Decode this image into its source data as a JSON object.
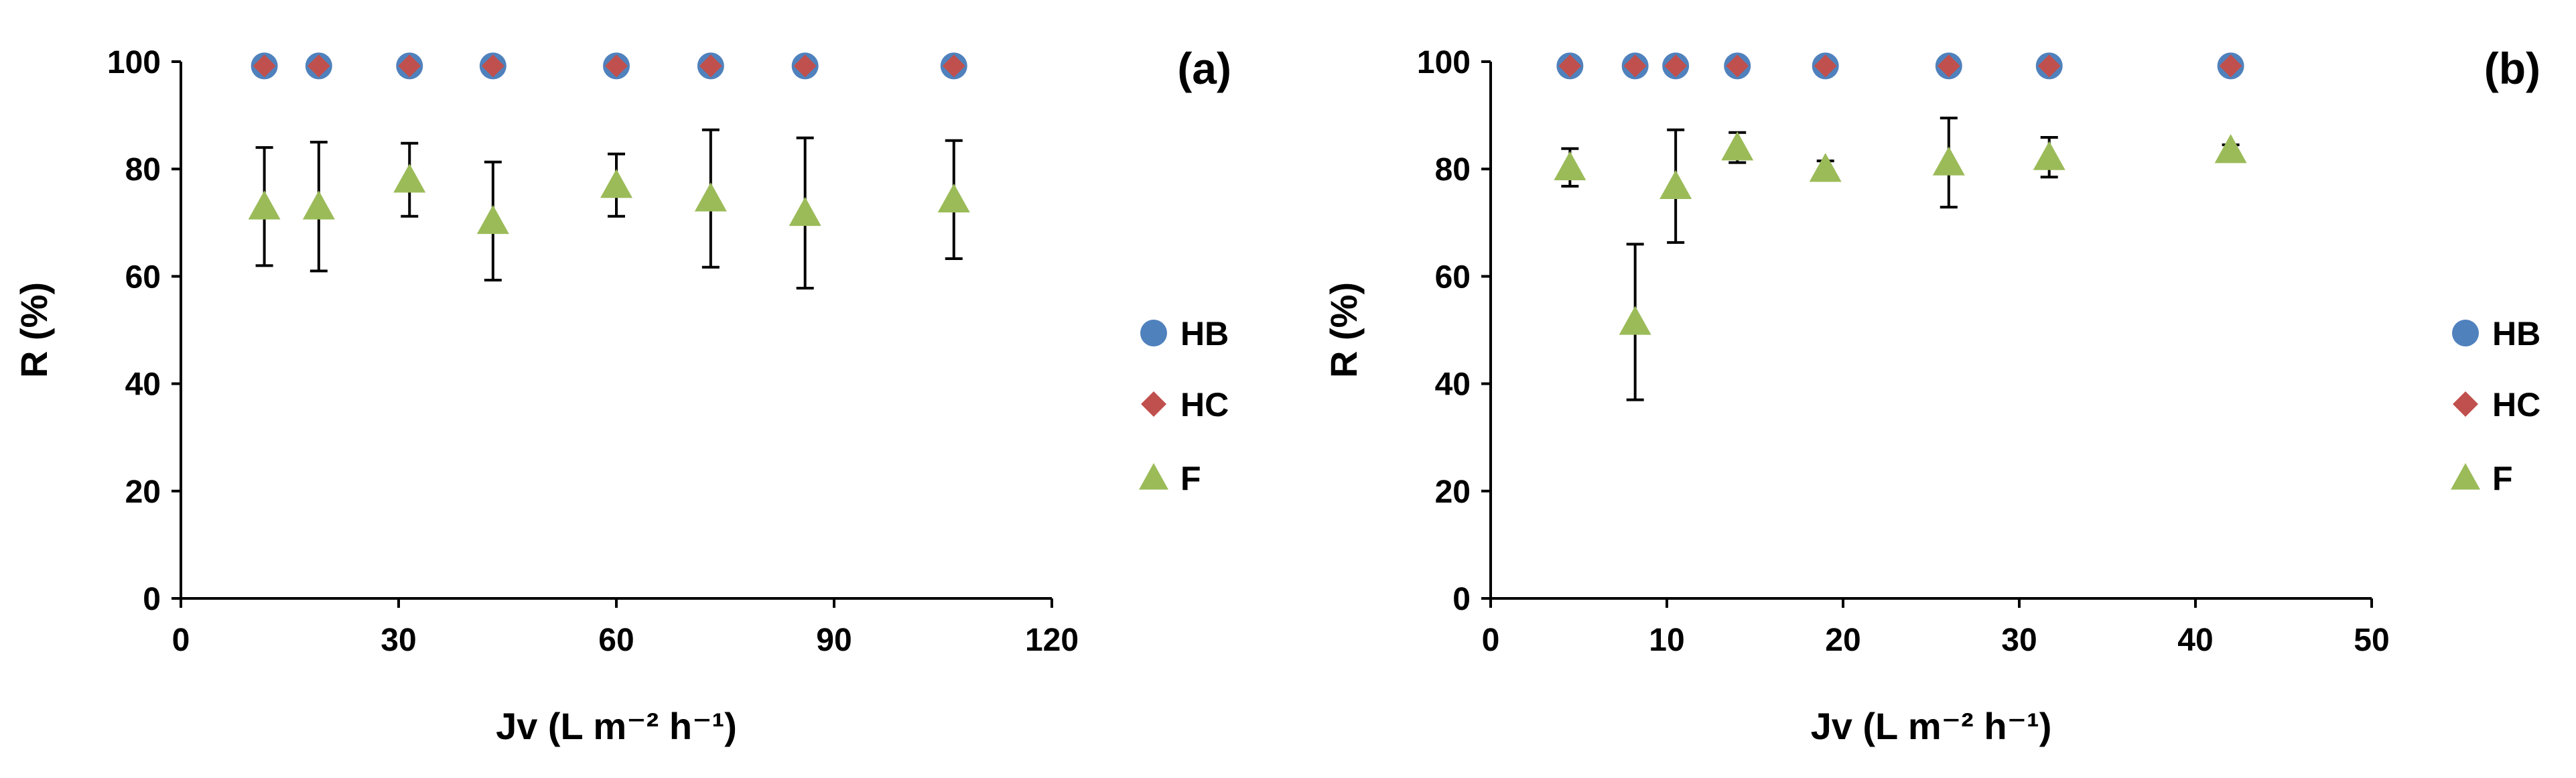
{
  "colors": {
    "HB": "#4F81BD",
    "HC": "#C0504D",
    "F": "#9BBB59",
    "axis": "#000000",
    "error_bar": "#000000"
  },
  "chart_data": [
    {
      "type": "scatter",
      "panel_label": "(a)",
      "title": "",
      "xlabel": "Jv (L m⁻² h⁻¹)",
      "ylabel": "R (%)",
      "xlim": [
        0,
        120
      ],
      "ylim": [
        0,
        100
      ],
      "xticks": [
        0,
        30,
        60,
        90,
        120
      ],
      "yticks": [
        0,
        20,
        40,
        60,
        80,
        100
      ],
      "grid": false,
      "legend_position": "right",
      "series": [
        {
          "name": "HB",
          "marker": "circle",
          "x": [
            11.5,
            19,
            31.5,
            43,
            60,
            73,
            86,
            106.5
          ],
          "y": [
            99.2,
            99.2,
            99.2,
            99.2,
            99.2,
            99.2,
            99.2,
            99.2
          ]
        },
        {
          "name": "HC",
          "marker": "diamond",
          "x": [
            11.5,
            19,
            31.5,
            43,
            60,
            73,
            86,
            106.5
          ],
          "y": [
            99.2,
            99.2,
            99.2,
            99.2,
            99.2,
            99.2,
            99.2,
            99.2
          ]
        },
        {
          "name": "F",
          "marker": "triangle",
          "x": [
            11.5,
            19,
            31.5,
            43,
            60,
            73,
            86,
            106.5
          ],
          "y": [
            73,
            73,
            78,
            70.3,
            77,
            74.5,
            71.8,
            74.3
          ],
          "error": [
            11,
            12,
            6.8,
            11,
            5.8,
            12.8,
            14,
            11
          ]
        }
      ]
    },
    {
      "type": "scatter",
      "panel_label": "(b)",
      "title": "",
      "xlabel": "Jv (L m⁻² h⁻¹)",
      "ylabel": "R (%)",
      "xlim": [
        0,
        50
      ],
      "ylim": [
        0,
        100
      ],
      "xticks": [
        0,
        10,
        20,
        30,
        40,
        50
      ],
      "yticks": [
        0,
        20,
        40,
        60,
        80,
        100
      ],
      "grid": false,
      "legend_position": "right",
      "series": [
        {
          "name": "HB",
          "marker": "circle",
          "x": [
            4.5,
            8.2,
            10.5,
            14,
            19,
            26,
            31.7,
            42
          ],
          "y": [
            99.2,
            99.2,
            99.2,
            99.2,
            99.2,
            99.2,
            99.2,
            99.2
          ]
        },
        {
          "name": "HC",
          "marker": "diamond",
          "x": [
            4.5,
            8.2,
            10.5,
            14,
            19,
            26,
            31.7,
            42
          ],
          "y": [
            99.2,
            99.2,
            99.2,
            99.2,
            99.2,
            99.2,
            99.2,
            99.2
          ]
        },
        {
          "name": "F",
          "marker": "triangle",
          "x": [
            4.5,
            8.2,
            10.5,
            14,
            19,
            26,
            31.7,
            42
          ],
          "y": [
            80.3,
            51.5,
            76.8,
            84,
            80,
            81.2,
            82.2,
            83.5
          ],
          "error": [
            3.5,
            14.5,
            10.5,
            2.8,
            1.5,
            8.3,
            3.7,
            1
          ]
        }
      ]
    }
  ]
}
